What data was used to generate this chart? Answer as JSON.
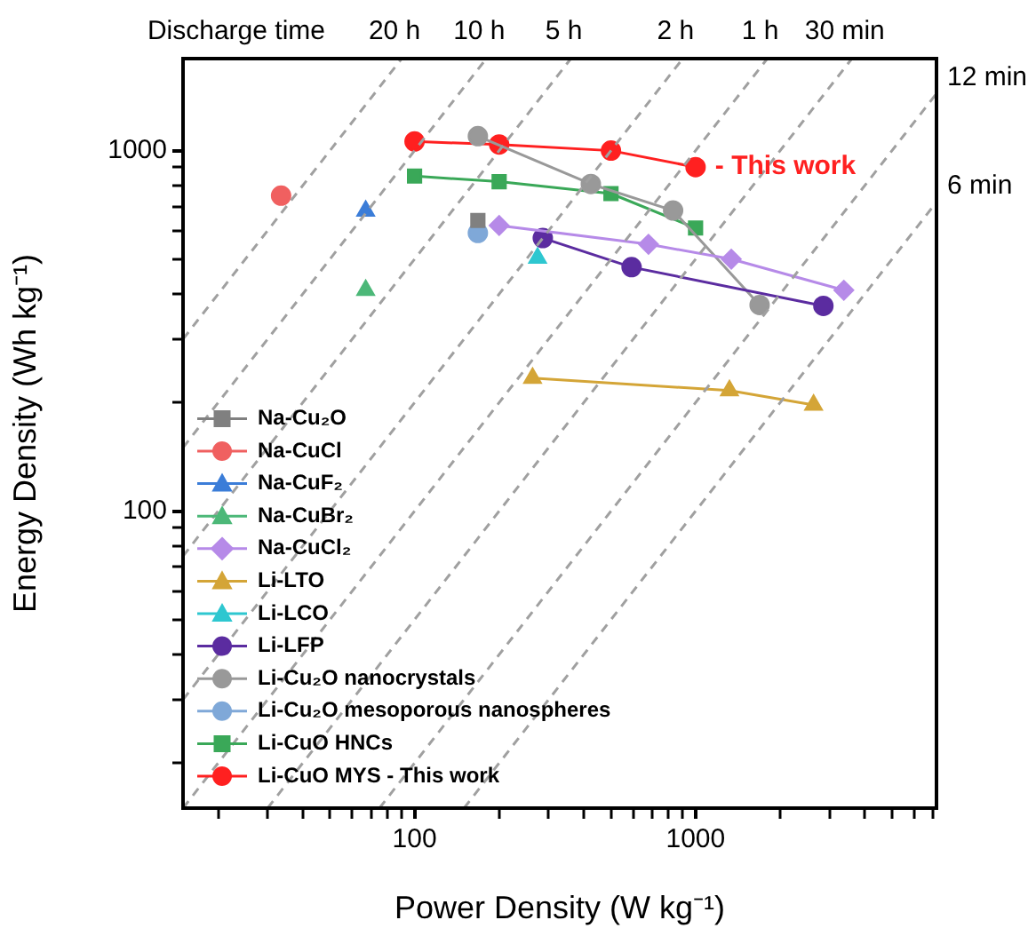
{
  "chart_data": {
    "type": "line",
    "xlabel": "Power Density (W kg⁻¹)",
    "ylabel": "Energy Density (Wh kg⁻¹)",
    "log": "xy",
    "xlim": [
      15,
      7200
    ],
    "ylim": [
      15,
      1800
    ],
    "xticks": [
      {
        "value": 20,
        "label": null
      },
      {
        "value": 30,
        "label": null
      },
      {
        "value": 40,
        "label": null
      },
      {
        "value": 50,
        "label": null
      },
      {
        "value": 60,
        "label": null
      },
      {
        "value": 70,
        "label": null
      },
      {
        "value": 80,
        "label": null
      },
      {
        "value": 90,
        "label": null
      },
      100,
      {
        "value": 200,
        "label": null
      },
      {
        "value": 300,
        "label": null
      },
      {
        "value": 400,
        "label": null
      },
      {
        "value": 500,
        "label": null
      },
      {
        "value": 600,
        "label": null
      },
      {
        "value": 700,
        "label": null
      },
      {
        "value": 800,
        "label": null
      },
      {
        "value": 900,
        "label": null
      },
      1000,
      {
        "value": 2000,
        "label": null
      },
      {
        "value": 3000,
        "label": null
      },
      {
        "value": 4000,
        "label": null
      },
      {
        "value": 5000,
        "label": null
      },
      {
        "value": 6000,
        "label": null
      },
      {
        "value": 7000,
        "label": null
      }
    ],
    "yticks": [
      {
        "value": 20,
        "label": null
      },
      {
        "value": 30,
        "label": null
      },
      {
        "value": 40,
        "label": null
      },
      {
        "value": 50,
        "label": null
      },
      {
        "value": 60,
        "label": null
      },
      {
        "value": 70,
        "label": null
      },
      {
        "value": 80,
        "label": null
      },
      {
        "value": 90,
        "label": null
      },
      100,
      {
        "value": 200,
        "label": null
      },
      {
        "value": 300,
        "label": null
      },
      {
        "value": 400,
        "label": null
      },
      {
        "value": 500,
        "label": null
      },
      {
        "value": 600,
        "label": null
      },
      {
        "value": 700,
        "label": null
      },
      {
        "value": 800,
        "label": null
      },
      {
        "value": 900,
        "label": null
      },
      1000
    ],
    "grid": false,
    "legend": "bottom left",
    "series": [
      {
        "color": "#a0a0a0",
        "line_style": "dashed",
        "marker": "none",
        "x": [
          15,
          90
        ],
        "values": [
          300,
          1800
        ]
      },
      {
        "color": "#a0a0a0",
        "line_style": "dashed",
        "marker": "none",
        "x": [
          15,
          180
        ],
        "values": [
          150,
          1800
        ]
      },
      {
        "color": "#a0a0a0",
        "line_style": "dashed",
        "marker": "none",
        "x": [
          15,
          360
        ],
        "values": [
          75,
          1800
        ]
      },
      {
        "color": "#a0a0a0",
        "line_style": "dashed",
        "marker": "none",
        "x": [
          15,
          900
        ],
        "values": [
          30,
          1800
        ]
      },
      {
        "color": "#a0a0a0",
        "line_style": "dashed",
        "marker": "none",
        "x": [
          15,
          1800
        ],
        "values": [
          15,
          1800
        ]
      },
      {
        "color": "#a0a0a0",
        "line_style": "dashed",
        "marker": "none",
        "x": [
          30,
          3600
        ],
        "values": [
          15,
          1800
        ]
      },
      {
        "color": "#a0a0a0",
        "line_style": "dashed",
        "marker": "none",
        "x": [
          75,
          7200
        ],
        "values": [
          15,
          1440
        ]
      },
      {
        "color": "#a0a0a0",
        "line_style": "dashed",
        "marker": "none",
        "x": [
          150,
          7200
        ],
        "values": [
          15,
          720
        ]
      },
      {
        "name": "Na-Cu₂O",
        "color": "#808080",
        "marker": "square",
        "x": [
          168
        ],
        "values": [
          640
        ]
      },
      {
        "name": "Na-CuCl",
        "color": "#f06060",
        "marker": "circle",
        "x": [
          33.5
        ],
        "values": [
          750
        ]
      },
      {
        "name": "Na-CuF₂",
        "color": "#3b7dd8",
        "marker": "triangle",
        "x": [
          67
        ],
        "values": [
          680
        ]
      },
      {
        "name": "Na-CuBr₂",
        "color": "#4cb878",
        "marker": "triangle",
        "x": [
          67
        ],
        "values": [
          410
        ]
      },
      {
        "name": "Na-CuCl₂",
        "color": "#b68ae8",
        "marker": "diamond",
        "x": [
          200,
          680,
          1340,
          3370
        ],
        "values": [
          620,
          550,
          500,
          410
        ]
      },
      {
        "name": "Li-LTO",
        "color": "#d4a537",
        "marker": "triangle",
        "x": [
          263,
          1320,
          2630
        ],
        "values": [
          234,
          216,
          197
        ]
      },
      {
        "name": "Li-LCO",
        "color": "#2ec7d0",
        "marker": "triangle",
        "x": [
          274
        ],
        "values": [
          504
        ]
      },
      {
        "name": "Li-LFP",
        "color": "#5b2ca0",
        "marker": "circle",
        "x": [
          286,
          592,
          2850
        ],
        "values": [
          572,
          475,
          371
        ]
      },
      {
        "name": "Li-Cu₂O nanocrystals",
        "color": "#999999",
        "marker": "circle",
        "x": [
          168,
          424,
          832,
          1690
        ],
        "values": [
          1097,
          808,
          682,
          373
        ]
      },
      {
        "name": "Li-Cu₂O mesoporous nanospheres",
        "color": "#7fa8d8",
        "marker": "circle",
        "x": [
          168
        ],
        "values": [
          591
        ]
      },
      {
        "name": "Li-CuO HNCs",
        "color": "#3aa858",
        "marker": "square",
        "x": [
          100,
          200,
          500,
          1000
        ],
        "values": [
          850,
          820,
          760,
          610
        ]
      },
      {
        "name": "Li-CuO MYS - This work",
        "color": "#ff2020",
        "marker": "circle",
        "x": [
          100,
          200,
          500,
          1000
        ],
        "values": [
          1060,
          1040,
          1000,
          900
        ]
      }
    ],
    "annotations": [
      "Discharge time",
      {
        "text": "20 h",
        "x": 90,
        "y": 1800
      },
      {
        "text": "10 h",
        "x": 180,
        "y": 1800
      },
      {
        "text": "5 h",
        "x": 360,
        "y": 1800
      },
      {
        "text": "2 h",
        "x": 900,
        "y": 1800
      },
      {
        "text": "1 h",
        "x": 1800,
        "y": 1800
      },
      {
        "text": "30 min",
        "x": 3600,
        "y": 1800
      },
      {
        "text": "12 min",
        "x": 7200,
        "y": 1440
      },
      {
        "text": "6 min",
        "x": 7200,
        "y": 720
      },
      {
        "text": "- This work",
        "x": 1000,
        "y": 900
      }
    ]
  }
}
